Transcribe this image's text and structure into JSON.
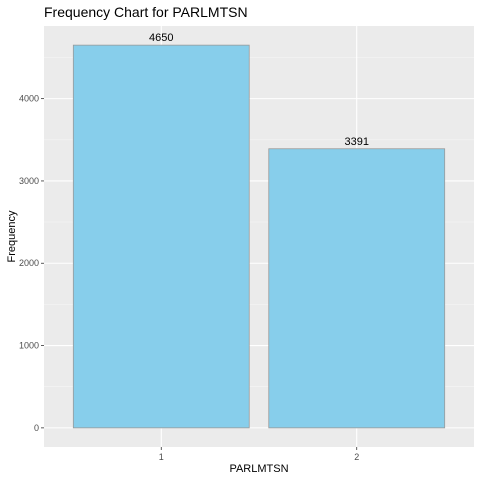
{
  "chart_data": {
    "type": "bar",
    "title": "Frequency Chart for PARLMTSN",
    "xlabel": "PARLMTSN",
    "ylabel": "Frequency",
    "categories": [
      "1",
      "2"
    ],
    "values": [
      4650,
      3391
    ],
    "data_labels": [
      "4650",
      "3391"
    ],
    "yticks": [
      0,
      1000,
      2000,
      3000,
      4000
    ],
    "ytick_labels": [
      "0",
      "1000",
      "2000",
      "3000",
      "4000"
    ],
    "ylim": [
      -232.5,
      4882.5
    ],
    "grid": true,
    "legend": "none",
    "colors": {
      "bar_fill": "#87CEEB",
      "bar_stroke": "#999999",
      "panel_bg": "#EBEBEB",
      "grid_major": "#FFFFFF",
      "grid_minor": "#F5F5F5"
    }
  }
}
